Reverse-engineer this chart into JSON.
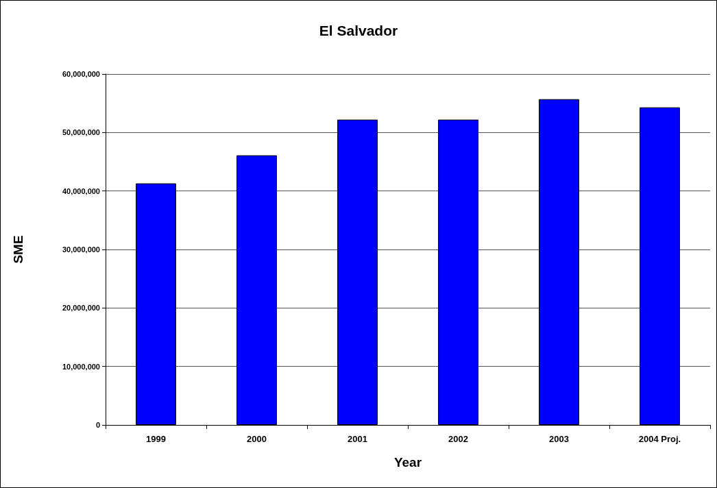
{
  "chart_data": {
    "type": "bar",
    "title": "El Salvador",
    "xlabel": "Year",
    "ylabel": "SME",
    "categories": [
      "1999",
      "2000",
      "2001",
      "2002",
      "2003",
      "2004 Proj."
    ],
    "values": [
      41300000,
      46100000,
      52200000,
      52200000,
      55700000,
      54300000
    ],
    "color": "#0000ff",
    "ylim": [
      0,
      60000000
    ],
    "yticks": [
      0,
      {
        "value": 10000000,
        "label": "10,000,000"
      },
      {
        "value": 20000000,
        "label": "20,000,000"
      },
      {
        "value": 30000000,
        "label": "30,000,000"
      },
      {
        "value": 40000000,
        "label": "40,000,000"
      },
      {
        "value": 50000000,
        "label": "50,000,000"
      },
      {
        "value": 60000000,
        "label": "60,000,000"
      }
    ],
    "grid": "y"
  }
}
